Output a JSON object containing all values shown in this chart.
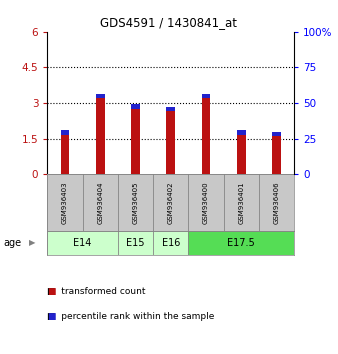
{
  "title": "GDS4591 / 1430841_at",
  "samples": [
    "GSM936403",
    "GSM936404",
    "GSM936405",
    "GSM936402",
    "GSM936400",
    "GSM936401",
    "GSM936406"
  ],
  "red_bottoms": [
    0.0,
    0.0,
    0.0,
    0.0,
    0.0,
    0.0,
    0.0
  ],
  "blue_bottoms": [
    1.65,
    3.2,
    2.75,
    2.65,
    3.2,
    1.65,
    1.6
  ],
  "blue_heights": [
    0.2,
    0.2,
    0.2,
    0.2,
    0.2,
    0.2,
    0.2
  ],
  "red_color": "#BB1111",
  "blue_color": "#2222CC",
  "ylim_left": [
    0,
    6
  ],
  "ylim_right": [
    0,
    100
  ],
  "yticks_left": [
    0,
    1.5,
    3.0,
    4.5,
    6
  ],
  "ytick_labels_left": [
    "0",
    "1.5",
    "3",
    "4.5",
    "6"
  ],
  "yticks_right": [
    0,
    25,
    50,
    75,
    100
  ],
  "ytick_labels_right": [
    "0",
    "25",
    "50",
    "75",
    "100%"
  ],
  "hlines": [
    1.5,
    3.0,
    4.5
  ],
  "age_groups": [
    {
      "label": "E14",
      "span": [
        0,
        2
      ],
      "color": "#CCFFCC"
    },
    {
      "label": "E15",
      "span": [
        2,
        3
      ],
      "color": "#CCFFCC"
    },
    {
      "label": "E16",
      "span": [
        3,
        4
      ],
      "color": "#CCFFCC"
    },
    {
      "label": "E17.5",
      "span": [
        4,
        7
      ],
      "color": "#55DD55"
    }
  ],
  "bar_width": 0.25,
  "sample_bg": "#C8C8C8",
  "age_label": "age"
}
